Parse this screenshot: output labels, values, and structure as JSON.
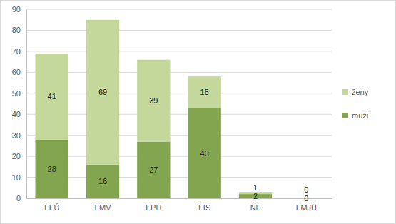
{
  "chart_data": {
    "type": "bar",
    "stacked": true,
    "data_labels": true,
    "grid": true,
    "legend": "right",
    "categories": [
      "FFÚ",
      "FMV",
      "FPH",
      "FIS",
      "NF",
      "FMJH"
    ],
    "series": [
      {
        "name": "muži",
        "color": "#84a550",
        "values": [
          28,
          16,
          27,
          43,
          2,
          0
        ]
      },
      {
        "name": "ženy",
        "color": "#c4d89c",
        "values": [
          41,
          69,
          39,
          15,
          1,
          0
        ]
      }
    ],
    "ylim": [
      0,
      90
    ],
    "yticks": [
      0,
      10,
      20,
      30,
      40,
      50,
      60,
      70,
      80,
      90
    ]
  }
}
